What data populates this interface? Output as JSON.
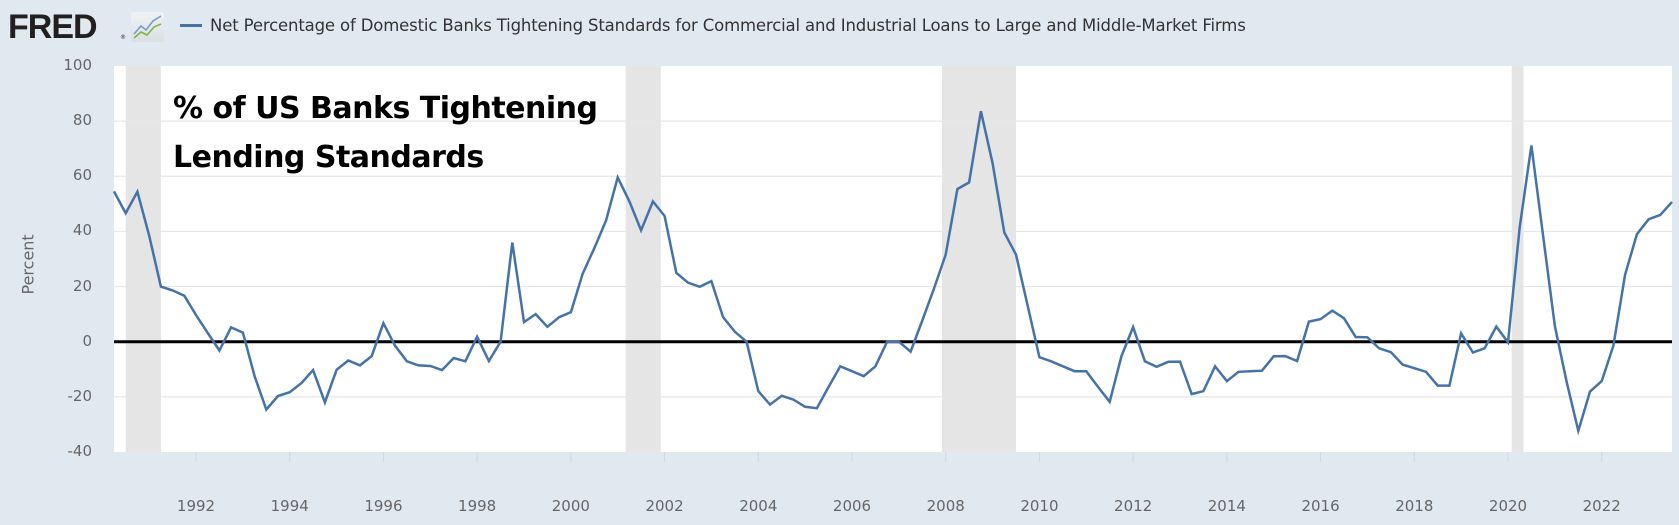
{
  "header": {
    "logo_text": "FRED",
    "logo_mark": "®",
    "logo_icon": "line-chart-icon",
    "series_title": "Net Percentage of Domestic Banks Tightening Standards for Commercial and Industrial Loans to Large and Middle-Market Firms",
    "series_color": "#4572a7"
  },
  "overlay_title": {
    "line1": "% of US Banks Tightening",
    "line2": "Lending Standards"
  },
  "colors": {
    "background": "#e1e9f0",
    "plot_background": "#ffffff",
    "line": "#4572a7",
    "recession_shade": "#e5e5e5",
    "zero_line": "#000000",
    "grid": "#e6e6e6"
  },
  "chart_data": {
    "type": "line",
    "title": "Net Percentage of Domestic Banks Tightening Standards for Commercial and Industrial Loans to Large and Middle-Market Firms",
    "annotation": "% of US Banks Tightening Lending Standards",
    "xlabel": "",
    "ylabel": "Percent",
    "ylim": [
      -40,
      100
    ],
    "yticks": [
      100,
      80,
      60,
      40,
      20,
      0,
      -20,
      -40
    ],
    "xticks": [
      "1992",
      "1994",
      "1996",
      "1998",
      "2000",
      "2002",
      "2004",
      "2006",
      "2008",
      "2010",
      "2012",
      "2014",
      "2016",
      "2018",
      "2020",
      "2022"
    ],
    "xlim": [
      1990.25,
      2023.5
    ],
    "grid": true,
    "legend_position": "top",
    "frequency": "quarterly",
    "reference_line": 0,
    "recessions": [
      {
        "start": 1990.5,
        "end": 1991.25
      },
      {
        "start": 2001.17,
        "end": 2001.92
      },
      {
        "start": 2007.92,
        "end": 2009.5
      },
      {
        "start": 2020.08,
        "end": 2020.33
      }
    ],
    "series": [
      {
        "name": "Net Percentage of Domestic Banks Tightening Standards for Commercial and Industrial Loans to Large and Middle-Market Firms",
        "start": "1990-04-01",
        "x": [
          1990.25,
          1990.5,
          1990.75,
          1991.0,
          1991.25,
          1991.5,
          1991.75,
          1992.0,
          1992.25,
          1992.5,
          1992.75,
          1993.0,
          1993.25,
          1993.5,
          1993.75,
          1994.0,
          1994.25,
          1994.5,
          1994.75,
          1995.0,
          1995.25,
          1995.5,
          1995.75,
          1996.0,
          1996.25,
          1996.5,
          1996.75,
          1997.0,
          1997.25,
          1997.5,
          1997.75,
          1998.0,
          1998.25,
          1998.5,
          1998.75,
          1999.0,
          1999.25,
          1999.5,
          1999.75,
          2000.0,
          2000.25,
          2000.5,
          2000.75,
          2001.0,
          2001.25,
          2001.5,
          2001.75,
          2002.0,
          2002.25,
          2002.5,
          2002.75,
          2003.0,
          2003.25,
          2003.5,
          2003.75,
          2004.0,
          2004.25,
          2004.5,
          2004.75,
          2005.0,
          2005.25,
          2005.5,
          2005.75,
          2006.0,
          2006.25,
          2006.5,
          2006.75,
          2007.0,
          2007.25,
          2007.5,
          2007.75,
          2008.0,
          2008.25,
          2008.5,
          2008.75,
          2009.0,
          2009.25,
          2009.5,
          2009.75,
          2010.0,
          2010.25,
          2010.5,
          2010.75,
          2011.0,
          2011.25,
          2011.5,
          2011.75,
          2012.0,
          2012.25,
          2012.5,
          2012.75,
          2013.0,
          2013.25,
          2013.5,
          2013.75,
          2014.0,
          2014.25,
          2014.5,
          2014.75,
          2015.0,
          2015.25,
          2015.5,
          2015.75,
          2016.0,
          2016.25,
          2016.5,
          2016.75,
          2017.0,
          2017.25,
          2017.5,
          2017.75,
          2018.0,
          2018.25,
          2018.5,
          2018.75,
          2019.0,
          2019.25,
          2019.5,
          2019.75,
          2020.0,
          2020.25,
          2020.5,
          2020.75,
          2021.0,
          2021.25,
          2021.5,
          2021.75,
          2022.0,
          2022.25,
          2022.5,
          2022.75,
          2023.0,
          2023.25,
          2023.5
        ],
        "values": [
          54.5,
          46.6,
          54.4,
          38.6,
          20.0,
          18.6,
          16.7,
          9.7,
          3.2,
          -3.2,
          5.2,
          3.3,
          -12.5,
          -24.6,
          -19.7,
          -18.3,
          -15.0,
          -10.3,
          -22.0,
          -10.2,
          -6.8,
          -8.6,
          -5.2,
          6.7,
          -1.5,
          -7.1,
          -8.6,
          -8.8,
          -10.3,
          -5.9,
          -7.1,
          1.8,
          -7.0,
          0.0,
          36.0,
          7.1,
          10.0,
          5.4,
          8.9,
          10.7,
          24.6,
          33.9,
          43.9,
          59.6,
          50.9,
          40.4,
          50.9,
          45.6,
          25.0,
          21.4,
          19.9,
          22.0,
          8.9,
          3.6,
          0.0,
          -17.9,
          -22.8,
          -19.6,
          -21.0,
          -23.6,
          -24.1,
          -16.4,
          -8.9,
          -10.7,
          -12.5,
          -8.9,
          0.0,
          0.0,
          -3.6,
          7.7,
          19.3,
          31.6,
          55.4,
          57.8,
          83.6,
          64.7,
          39.6,
          31.6,
          13.0,
          -5.6,
          -7.1,
          -8.9,
          -10.7,
          -10.7,
          -16.4,
          -21.8,
          -5.3,
          5.3,
          -7.1,
          -9.1,
          -7.3,
          -7.2,
          -19.0,
          -17.9,
          -8.9,
          -14.3,
          -10.9,
          -10.7,
          -10.5,
          -5.3,
          -5.2,
          -7.0,
          7.3,
          8.2,
          11.3,
          8.5,
          1.7,
          1.6,
          -2.4,
          -3.8,
          -8.3,
          -9.6,
          -10.9,
          -15.9,
          -15.9,
          3.0,
          -3.9,
          -2.4,
          5.5,
          -0.2,
          41.5,
          71.2,
          38.4,
          5.6,
          -14.5,
          -32.3,
          -18.1,
          -14.3,
          -1.4,
          24.3,
          39.0,
          44.4,
          46.0,
          50.7
        ]
      }
    ]
  }
}
